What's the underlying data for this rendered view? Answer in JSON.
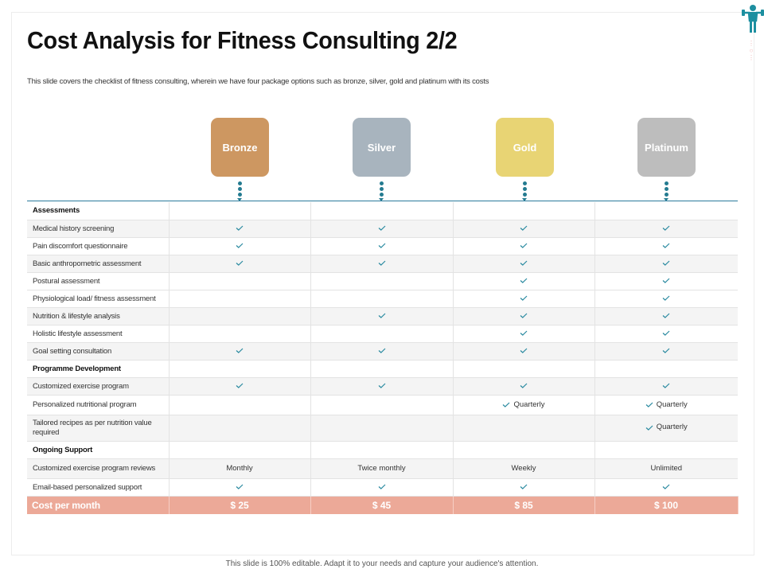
{
  "title": "Cost Analysis for Fitness Consulting 2/2",
  "subtitle": "This slide covers the checklist of fitness consulting, wherein we have four package options such as bronze, silver, gold and platinum with its costs",
  "packages": [
    "Bronze",
    "Silver",
    "Gold",
    "Platinum"
  ],
  "rows": [
    {
      "label": "Assessments",
      "section": true,
      "cells": [
        "",
        "",
        "",
        ""
      ]
    },
    {
      "label": "Medical history screening",
      "cells": [
        "check",
        "check",
        "check",
        "check"
      ]
    },
    {
      "label": "Pain discomfort questionnaire",
      "cells": [
        "check",
        "check",
        "check",
        "check"
      ]
    },
    {
      "label": "Basic anthropometric assessment",
      "cells": [
        "check",
        "check",
        "check",
        "check"
      ]
    },
    {
      "label": "Postural assessment",
      "cells": [
        "",
        "",
        "check",
        "check"
      ]
    },
    {
      "label": "Physiological load/ fitness assessment",
      "cells": [
        "",
        "",
        "check",
        "check"
      ]
    },
    {
      "label": "Nutrition & lifestyle analysis",
      "cells": [
        "",
        "check",
        "check",
        "check"
      ]
    },
    {
      "label": "Holistic lifestyle assessment",
      "cells": [
        "",
        "",
        "check",
        "check"
      ]
    },
    {
      "label": "Goal setting consultation",
      "cells": [
        "check",
        "check",
        "check",
        "check"
      ]
    },
    {
      "label": "Programme Development",
      "section": true,
      "cells": [
        "",
        "",
        "",
        ""
      ]
    },
    {
      "label": "Customized exercise program",
      "cells": [
        "check",
        "check",
        "check",
        "check"
      ]
    },
    {
      "label": "Personalized nutritional program",
      "cells": [
        "",
        "",
        "check:Quarterly",
        "check:Quarterly"
      ]
    },
    {
      "label": "Tailored recipes as per nutrition value required",
      "cells": [
        "",
        "",
        "",
        "check:Quarterly"
      ]
    },
    {
      "label": "Ongoing Support",
      "section": true,
      "cells": [
        "",
        "",
        "",
        ""
      ]
    },
    {
      "label": "Customized exercise program reviews",
      "cells": [
        "Monthly",
        "Twice monthly",
        "Weekly",
        "Unlimited"
      ]
    },
    {
      "label": "Email-based personalized support",
      "cells": [
        "check",
        "check",
        "check",
        "check"
      ]
    }
  ],
  "cost": {
    "label": "Cost per month",
    "values": [
      "$ 25",
      "$ 45",
      "$ 85",
      "$ 100"
    ]
  },
  "footer": "This slide is 100% editable. Adapt it to your needs and capture your audience's attention.",
  "colors": {
    "bronze": "#cd9761",
    "silver": "#a8b4be",
    "gold": "#e8d474",
    "platinum": "#bdbdbd",
    "check": "#2a8aa0",
    "cost_row": "#eca998",
    "accent": "#247b90"
  }
}
